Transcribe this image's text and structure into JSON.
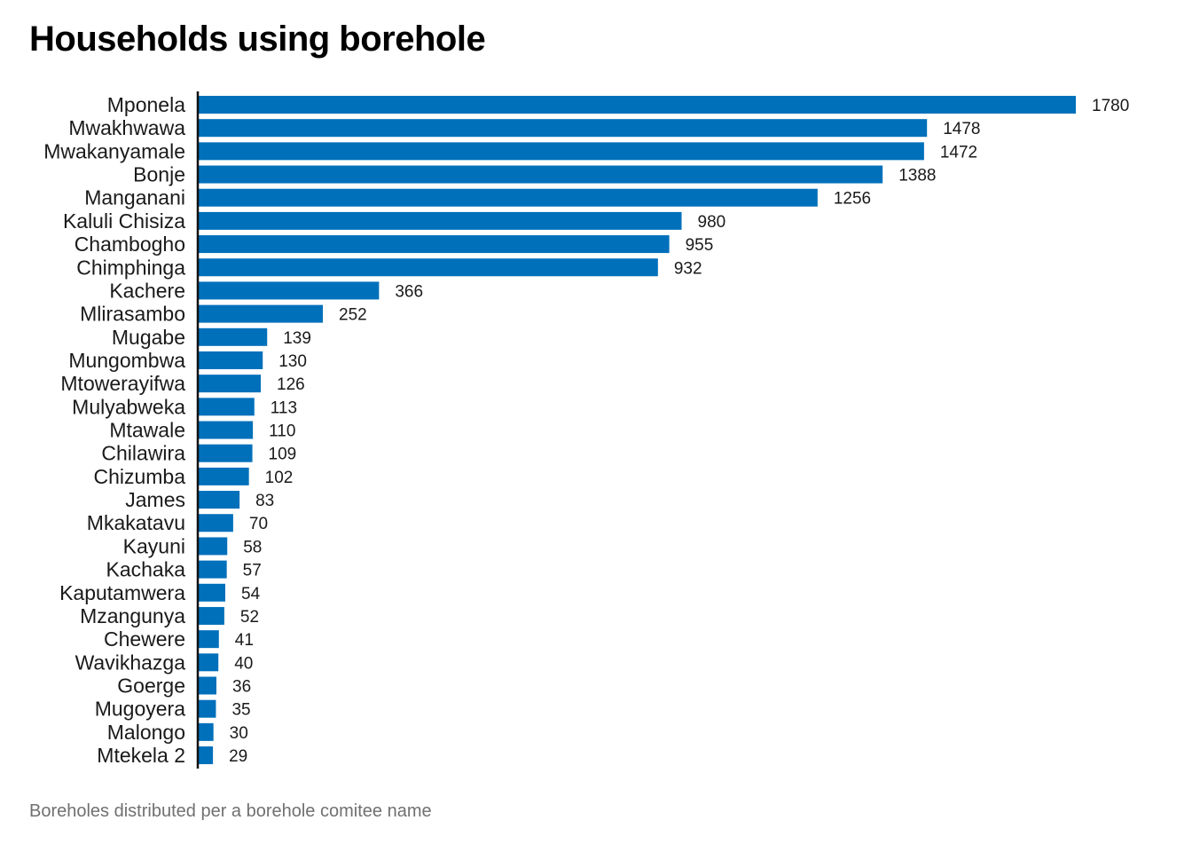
{
  "chart_data": {
    "type": "bar",
    "orientation": "horizontal",
    "title": "Households using borehole",
    "caption": "Boreholes distributed per a borehole comitee name",
    "xlabel": "",
    "ylabel": "",
    "grid": false,
    "xlim": [
      0,
      1780
    ],
    "bar_color": "#0070bb",
    "axis_color": "#111111",
    "categories": [
      "Mponela",
      "Mwakhwawa",
      "Mwakanyamale",
      "Bonje",
      "Manganani",
      "Kaluli Chisiza",
      "Chambogho",
      "Chimphinga",
      "Kachere",
      "Mlirasambo",
      "Mugabe",
      "Mungombwa",
      "Mtowerayifwa",
      "Mulyabweka",
      "Mtawale",
      "Chilawira",
      "Chizumba",
      "James",
      "Mkakatavu",
      "Kayuni",
      "Kachaka",
      "Kaputamwera",
      "Mzangunya",
      "Chewere",
      "Wavikhazga",
      "Goerge",
      "Mugoyera",
      "Malongo",
      "Mtekela 2"
    ],
    "values": [
      1780,
      1478,
      1472,
      1388,
      1256,
      980,
      955,
      932,
      366,
      252,
      139,
      130,
      126,
      113,
      110,
      109,
      102,
      83,
      70,
      58,
      57,
      54,
      52,
      41,
      40,
      36,
      35,
      30,
      29
    ]
  }
}
